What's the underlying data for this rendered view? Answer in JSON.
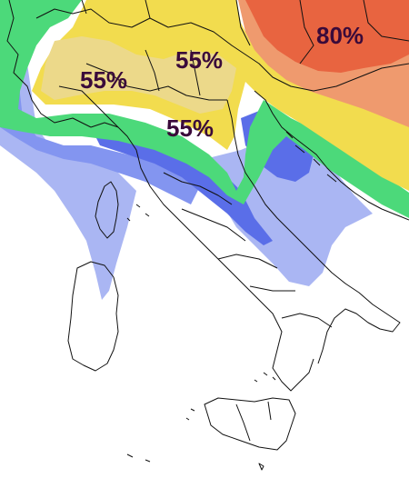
{
  "colors": {
    "background": "#ffffff",
    "blue_light": "#aab6f3",
    "blue_mid": "#8395f0",
    "blue_dark": "#5a6ee8",
    "green": "#4cd97a",
    "yellow_light": "#ecd98a",
    "yellow": "#f2dc4e",
    "orange": "#ef9a6e",
    "red": "#e86440",
    "border": "#111111",
    "label": "#3a0a3a"
  },
  "labels": [
    {
      "id": "label-northwest",
      "text": "55%"
    },
    {
      "id": "label-north-central",
      "text": "55%"
    },
    {
      "id": "label-center",
      "text": "55%"
    },
    {
      "id": "label-northeast",
      "text": "80%"
    }
  ]
}
